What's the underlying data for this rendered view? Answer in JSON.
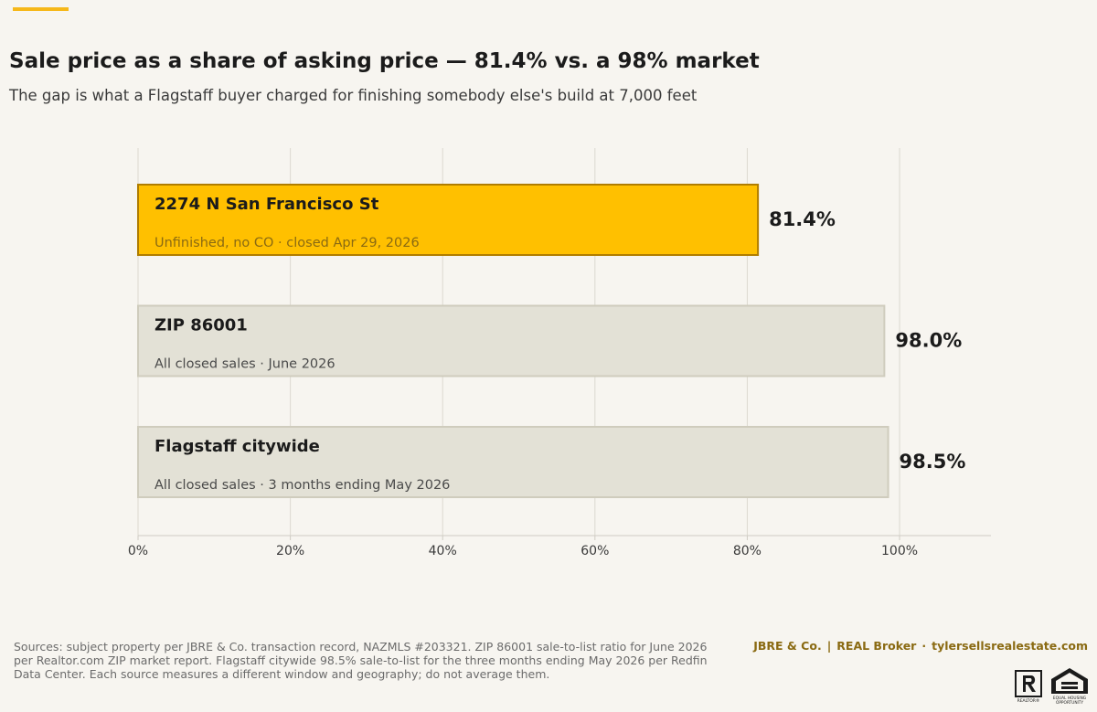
{
  "header": {
    "title": "Sale price as a share of asking price — 81.4% vs. a 98% market",
    "subtitle": "The gap is what a Flagstaff buyer charged for finishing somebody else's build at 7,000 feet"
  },
  "chart_data": {
    "type": "bar",
    "orientation": "horizontal",
    "categories": [
      "2274 N San Francisco St",
      "ZIP 86001",
      "Flagstaff citywide"
    ],
    "sublabels": [
      "Unfinished, no CO · closed Apr 29, 2026",
      "All closed sales · June 2026",
      "All closed sales · 3 months ending May 2026"
    ],
    "values": [
      81.4,
      98.0,
      98.5
    ],
    "value_labels": [
      "81.4%",
      "98.0%",
      "98.5%"
    ],
    "highlight_index": 0,
    "xlim": [
      0,
      112
    ],
    "x_ticks": [
      0,
      20,
      40,
      60,
      80,
      100
    ],
    "x_tick_labels": [
      "0%",
      "20%",
      "40%",
      "60%",
      "80%",
      "100%"
    ],
    "grid": true,
    "colors": {
      "highlight_fill": "#ffc000",
      "highlight_stroke": "#b07d00",
      "highlight_sublabel": "#8a6a12",
      "base_fill": "#e3e1d6",
      "base_stroke": "#cfccbd",
      "base_sublabel": "#4a4a4a",
      "gridline": "#dcd9d0",
      "axis": "#cfccc4"
    }
  },
  "footer": {
    "sources": "Sources: subject property per JBRE & Co. transaction record, NAZMLS #203321. ZIP 86001 sale-to-list ratio for June 2026 per Realtor.com ZIP market report. Flagstaff citywide 98.5% sale-to-list for the three months ending May 2026 per Redfin Data Center. Each source measures a different window and geography; do not average them.",
    "brand_name": "JBRE & Co.",
    "brand_sep1": "|",
    "brand_broker": "REAL Broker",
    "brand_sep2": "·",
    "brand_site": "tylersellsrealestate.com",
    "logos": [
      "realtor-logo",
      "equal-housing-opportunity-logo"
    ],
    "eho_text": "EQUAL HOUSING OPPORTUNITY",
    "realtor_text": "REALTOR"
  }
}
